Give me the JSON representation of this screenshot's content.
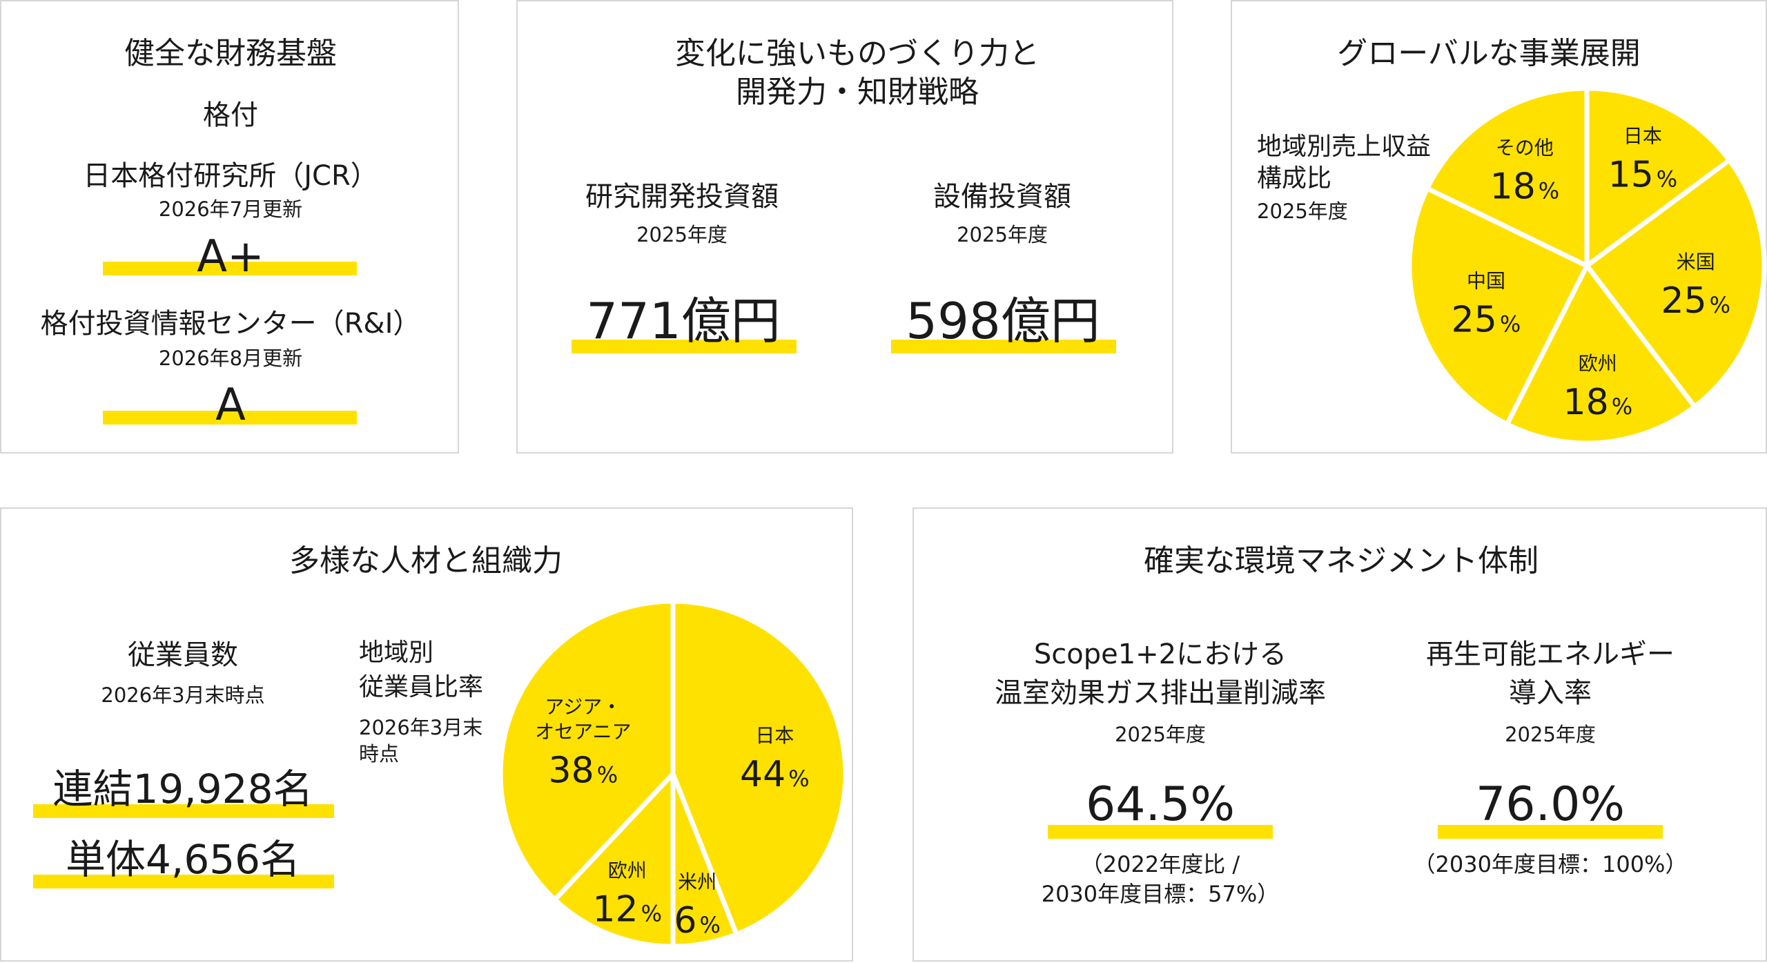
{
  "colors": {
    "accent": "#ffe100",
    "border": "#d6d6d6",
    "text": "#1a1a1a"
  },
  "finance": {
    "title": "健全な財務基盤",
    "rating_label": "格付",
    "jcr_name": "日本格付研究所（JCR）",
    "jcr_date": "2026年7月更新",
    "jcr_rating": "A+",
    "ri_name": "格付投資情報センター（R&I）",
    "ri_date": "2026年8月更新",
    "ri_rating": "A"
  },
  "rnd": {
    "title_line1": "変化に強いものづくり力と",
    "title_line2": "開発力・知財戦略",
    "rd_label": "研究開発投資額",
    "rd_year": "2025年度",
    "rd_value": "771億円",
    "capex_label": "設備投資額",
    "capex_year": "2025年度",
    "capex_value": "598億円"
  },
  "global": {
    "title": "グローバルな事業展開",
    "chart_label_line1": "地域別売上収益",
    "chart_label_line2": "構成比",
    "chart_year": "2025年度",
    "pct_unit": "%",
    "regions": [
      {
        "name": "日本",
        "value": "15"
      },
      {
        "name": "米国",
        "value": "25"
      },
      {
        "name": "欧州",
        "value": "18"
      },
      {
        "name": "中国",
        "value": "25"
      },
      {
        "name": "その他",
        "value": "18"
      }
    ]
  },
  "people": {
    "title": "多様な人材と組織力",
    "emp_label": "従業員数",
    "emp_date": "2026年3月末時点",
    "consolidated": "連結19,928名",
    "standalone": "単体4,656名",
    "chart_label_line1": "地域別",
    "chart_label_line2": "従業員比率",
    "chart_date_line1": "2026年3月末",
    "chart_date_line2": "時点",
    "pct_unit": "%",
    "regions": [
      {
        "name": "日本",
        "value": "44"
      },
      {
        "name": "米州",
        "value": "6"
      },
      {
        "name": "欧州",
        "value": "12"
      },
      {
        "name_line1": "アジア・",
        "name_line2": "オセアニア",
        "value": "38"
      }
    ]
  },
  "env": {
    "title": "確実な環境マネジメント体制",
    "ghg_label_line1": "Scope1+2における",
    "ghg_label_line2": "温室効果ガス排出量削減率",
    "ghg_year": "2025年度",
    "ghg_value": "64.5%",
    "ghg_note_line1": "（2022年度比 /",
    "ghg_note_line2": "2030年度目標：57%）",
    "re_label_line1": "再生可能エネルギー",
    "re_label_line2": "導入率",
    "re_year": "2025年度",
    "re_value": "76.0%",
    "re_note": "（2030年度目標：100%）"
  },
  "chart_data": [
    {
      "type": "pie",
      "title": "",
      "categories": [
        "日本",
        "米国",
        "欧州",
        "中国",
        "その他"
      ],
      "values": [
        15,
        25,
        18,
        25,
        18
      ],
      "unit": "%"
    },
    {
      "type": "pie",
      "title": "",
      "categories": [
        "日本",
        "米州",
        "欧州",
        "アジア・オセアニア"
      ],
      "values": [
        44,
        6,
        12,
        38
      ],
      "unit": "%"
    }
  ]
}
